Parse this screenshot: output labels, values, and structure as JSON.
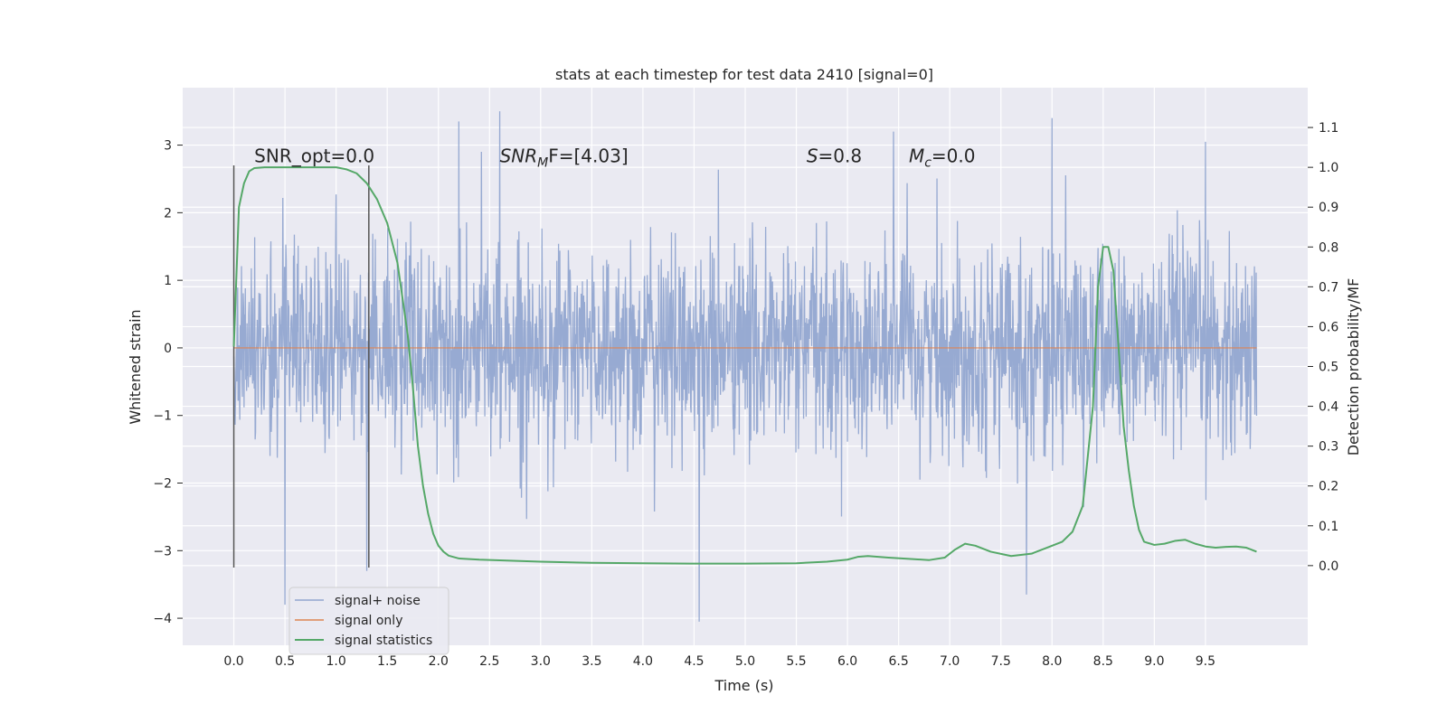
{
  "chart_data": {
    "type": "line",
    "title": "stats at each timestep for test data 2410 [signal=0]",
    "xlabel": "Time (s)",
    "ylabel_left": "Whitened strain",
    "ylabel_right": "Detection probability/MF",
    "xlim": [
      -0.5,
      10.5
    ],
    "ylim_left": [
      -4.4,
      3.85
    ],
    "ylim_right": [
      -0.2,
      1.2
    ],
    "x_ticks": [
      0.0,
      0.5,
      1.0,
      1.5,
      2.0,
      2.5,
      3.0,
      3.5,
      4.0,
      4.5,
      5.0,
      5.5,
      6.0,
      6.5,
      7.0,
      7.5,
      8.0,
      8.5,
      9.0,
      9.5
    ],
    "x_tick_labels": [
      "0.0",
      "0.5",
      "1.0",
      "1.5",
      "2.0",
      "2.5",
      "3.0",
      "3.5",
      "4.0",
      "4.5",
      "5.0",
      "5.5",
      "6.0",
      "6.5",
      "7.0",
      "7.5",
      "8.0",
      "8.5",
      "9.0",
      "9.5"
    ],
    "y_left_ticks": [
      -4,
      -3,
      -2,
      -1,
      0,
      1,
      2,
      3
    ],
    "y_left_tick_labels": [
      "−4",
      "−3",
      "−2",
      "−1",
      "0",
      "1",
      "2",
      "3"
    ],
    "y_right_ticks": [
      0.0,
      0.1,
      0.2,
      0.3,
      0.4,
      0.5,
      0.6,
      0.7,
      0.8,
      0.9,
      1.0,
      1.1
    ],
    "y_right_tick_labels": [
      "0.0",
      "0.1",
      "0.2",
      "0.3",
      "0.4",
      "0.5",
      "0.6",
      "0.7",
      "0.8",
      "0.9",
      "1.0",
      "1.1"
    ],
    "grid": true,
    "legend_position": "lower-left",
    "annotations": [
      {
        "text": "SNR_opt=0.0",
        "x": 0.2,
        "y": 2.75
      },
      {
        "text_pre": "SNR",
        "text_sub": "M",
        "text_post": "F=[4.03]",
        "x": 2.6,
        "y": 2.75
      },
      {
        "text_pre": "S",
        "text_sub": "",
        "text_post": "=0.8",
        "x": 5.6,
        "y": 2.75
      },
      {
        "text_pre": "M",
        "text_sub": "c",
        "text_post": "=0.0",
        "x": 6.6,
        "y": 2.75
      }
    ],
    "vertical_markers": [
      {
        "x": 0.0,
        "y_range": [
          -3.25,
          2.7
        ]
      },
      {
        "x": 1.32,
        "y_range": [
          -3.25,
          2.7
        ]
      }
    ],
    "series": [
      {
        "name": "signal+ noise",
        "color": "#92a6d0",
        "axis": "left",
        "description": "dense whitened strain noise trace, 0 to 10 s",
        "t_range": [
          0.0,
          10.0
        ],
        "envelope": {
          "typical_amplitude": 1.5,
          "spikes": [
            [
              0.5,
              -3.8
            ],
            [
              1.3,
              -3.3
            ],
            [
              2.2,
              3.35
            ],
            [
              2.6,
              3.5
            ],
            [
              4.55,
              -4.05
            ],
            [
              6.45,
              3.2
            ],
            [
              7.75,
              -3.65
            ],
            [
              8.0,
              3.4
            ],
            [
              9.5,
              3.05
            ]
          ]
        }
      },
      {
        "name": "signal only",
        "color": "#dd8452",
        "axis": "left",
        "x": [
          0.0,
          10.0
        ],
        "values": [
          0.0,
          0.0
        ]
      },
      {
        "name": "signal statistics",
        "color": "#55a868",
        "axis": "right",
        "x": [
          0.0,
          0.05,
          0.1,
          0.15,
          0.2,
          0.3,
          0.5,
          0.7,
          0.9,
          1.0,
          1.1,
          1.2,
          1.3,
          1.4,
          1.5,
          1.6,
          1.7,
          1.75,
          1.8,
          1.85,
          1.9,
          1.95,
          2.0,
          2.05,
          2.1,
          2.2,
          2.4,
          3.0,
          3.5,
          4.0,
          4.5,
          5.0,
          5.5,
          5.8,
          6.0,
          6.1,
          6.2,
          6.4,
          6.6,
          6.8,
          6.95,
          7.05,
          7.15,
          7.25,
          7.4,
          7.6,
          7.8,
          7.95,
          8.1,
          8.2,
          8.3,
          8.4,
          8.45,
          8.5,
          8.55,
          8.6,
          8.65,
          8.7,
          8.75,
          8.8,
          8.85,
          8.9,
          9.0,
          9.1,
          9.2,
          9.3,
          9.4,
          9.5,
          9.6,
          9.7,
          9.8,
          9.9,
          10.0
        ],
        "values": [
          0.55,
          0.9,
          0.96,
          0.99,
          0.998,
          1.0,
          1.0,
          1.0,
          1.0,
          1.0,
          0.995,
          0.985,
          0.96,
          0.92,
          0.86,
          0.76,
          0.58,
          0.45,
          0.3,
          0.2,
          0.13,
          0.08,
          0.05,
          0.035,
          0.025,
          0.018,
          0.015,
          0.01,
          0.007,
          0.006,
          0.005,
          0.005,
          0.006,
          0.01,
          0.015,
          0.022,
          0.024,
          0.02,
          0.017,
          0.014,
          0.02,
          0.04,
          0.055,
          0.05,
          0.035,
          0.024,
          0.03,
          0.045,
          0.06,
          0.085,
          0.15,
          0.4,
          0.7,
          0.8,
          0.8,
          0.74,
          0.55,
          0.35,
          0.24,
          0.15,
          0.09,
          0.06,
          0.052,
          0.055,
          0.062,
          0.065,
          0.055,
          0.048,
          0.045,
          0.047,
          0.048,
          0.045,
          0.035
        ]
      }
    ]
  }
}
